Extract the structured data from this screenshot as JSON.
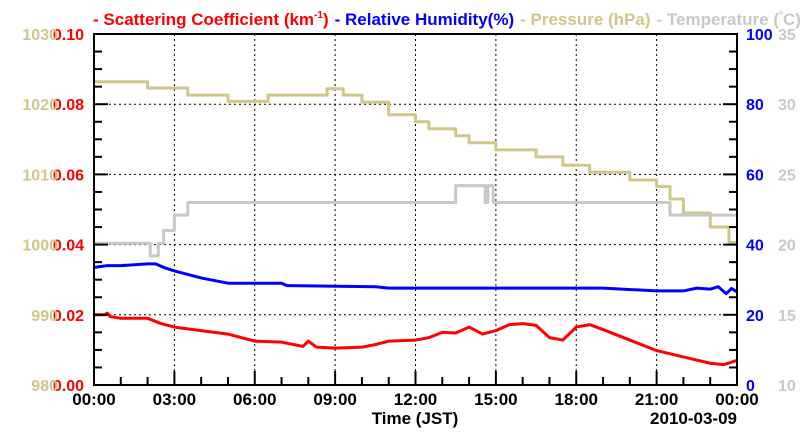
{
  "chart_data": {
    "type": "line",
    "title_parts": [
      {
        "text": "- Scattering Coefficient (km",
        "sup": "-1",
        "after": ")",
        "color": "#ff0000"
      },
      {
        "text": "- Relative Humidity(%)",
        "color": "#0000ff"
      },
      {
        "text": "- Pressure (hPa)",
        "color": "#cfc68a"
      },
      {
        "text": "- Temperature (",
        "sup": "°",
        "after": "C)",
        "color": "#c8c8c8"
      }
    ],
    "xlabel": "Time (JST)",
    "date_label": "2010-03-09",
    "x_ticks": [
      "00:00",
      "03:00",
      "06:00",
      "09:00",
      "12:00",
      "15:00",
      "18:00",
      "21:00",
      "00:00"
    ],
    "xlim": [
      0,
      24
    ],
    "grid": true,
    "axes": {
      "scattering": {
        "ylim": [
          0,
          0.1
        ],
        "ticks": [
          "0.00",
          "0.02",
          "0.04",
          "0.06",
          "0.08",
          "0.10"
        ],
        "color": "#ff0000",
        "side": "left-inner"
      },
      "pressure": {
        "ylim": [
          980,
          1030
        ],
        "ticks": [
          "980",
          "990",
          "1000",
          "1010",
          "1020",
          "1030"
        ],
        "color": "#cfc68a",
        "side": "left-outer"
      },
      "humidity": {
        "ylim": [
          0,
          100
        ],
        "ticks": [
          "0",
          "20",
          "40",
          "60",
          "80",
          "100"
        ],
        "color": "#0000ff",
        "side": "right-inner"
      },
      "temperature": {
        "ylim": [
          10,
          35
        ],
        "ticks": [
          "10",
          "15",
          "20",
          "25",
          "30",
          "35"
        ],
        "color": "#c8c8c8",
        "side": "right-outer"
      }
    },
    "series": [
      {
        "name": "Pressure (hPa)",
        "axis": "pressure",
        "color": "#cfc68a",
        "step": true,
        "x": [
          0,
          2,
          3.5,
          5,
          6.5,
          8.7,
          9.3,
          10,
          11,
          12,
          12.5,
          13.5,
          14,
          15,
          16.5,
          17.5,
          18.5,
          20,
          21,
          21.5,
          22,
          23,
          23.7,
          24
        ],
        "y": [
          1023.2,
          1022.3,
          1021.3,
          1020.4,
          1021.3,
          1022.2,
          1021.3,
          1020.3,
          1018.5,
          1017.5,
          1016.5,
          1015.5,
          1014.5,
          1013.5,
          1012.5,
          1011.3,
          1010.3,
          1009.2,
          1008.3,
          1006.5,
          1004.5,
          1002.5,
          1000.3,
          1000.3
        ]
      },
      {
        "name": "Temperature (C)",
        "axis": "temperature",
        "color": "#c8c8c8",
        "step": true,
        "x": [
          0,
          2.1,
          2.4,
          2.6,
          3,
          3.5,
          4,
          13.5,
          13.7,
          14.6,
          14.7,
          14.8,
          14.9,
          15,
          21.2,
          21.5,
          24
        ],
        "y": [
          20.1,
          19.2,
          20.1,
          21,
          22.1,
          23,
          23,
          24.2,
          24.2,
          23,
          24.2,
          24.2,
          23,
          23,
          23,
          22.1,
          22.1
        ]
      },
      {
        "name": "Relative Humidity(%)",
        "axis": "humidity",
        "color": "#0000ff",
        "step": false,
        "x": [
          0,
          0.5,
          1,
          2,
          2.3,
          2.6,
          3,
          3.5,
          4,
          5,
          7,
          7.2,
          7.3,
          10.5,
          11,
          13,
          16,
          19,
          21,
          22,
          22.5,
          23,
          23.3,
          23.6,
          23.8,
          24
        ],
        "y": [
          33.5,
          34,
          34,
          34.5,
          34.5,
          33.5,
          32.5,
          31.5,
          30.5,
          29,
          29,
          28.3,
          28.3,
          28,
          27.6,
          27.6,
          27.6,
          27.6,
          26.8,
          26.8,
          27.6,
          27.3,
          28,
          26,
          27.5,
          26.5
        ]
      },
      {
        "name": "Scattering Coefficient (km-1)",
        "axis": "scattering",
        "color": "#ff0000",
        "step": false,
        "x": [
          0,
          0.4,
          0.5,
          0.6,
          1,
          1.5,
          2,
          2.5,
          3,
          3.5,
          4,
          5,
          6,
          7,
          7.8,
          8,
          8.3,
          9,
          10,
          10.5,
          11,
          12,
          12.5,
          13,
          13.5,
          14,
          14.5,
          15,
          15.5,
          16,
          16.5,
          17,
          17.5,
          18,
          18.5,
          19,
          20,
          21,
          22,
          23,
          23.5,
          24
        ],
        "y": [
          0.02,
          0.02,
          0.0205,
          0.0195,
          0.019,
          0.019,
          0.019,
          0.0175,
          0.0165,
          0.016,
          0.0155,
          0.0145,
          0.0125,
          0.0122,
          0.011,
          0.0125,
          0.0108,
          0.0105,
          0.0108,
          0.0115,
          0.0125,
          0.0128,
          0.0135,
          0.015,
          0.0148,
          0.0165,
          0.0145,
          0.0155,
          0.0172,
          0.0175,
          0.017,
          0.0135,
          0.0128,
          0.0165,
          0.0172,
          0.0158,
          0.0128,
          0.0098,
          0.008,
          0.0062,
          0.0058,
          0.007
        ]
      }
    ]
  }
}
